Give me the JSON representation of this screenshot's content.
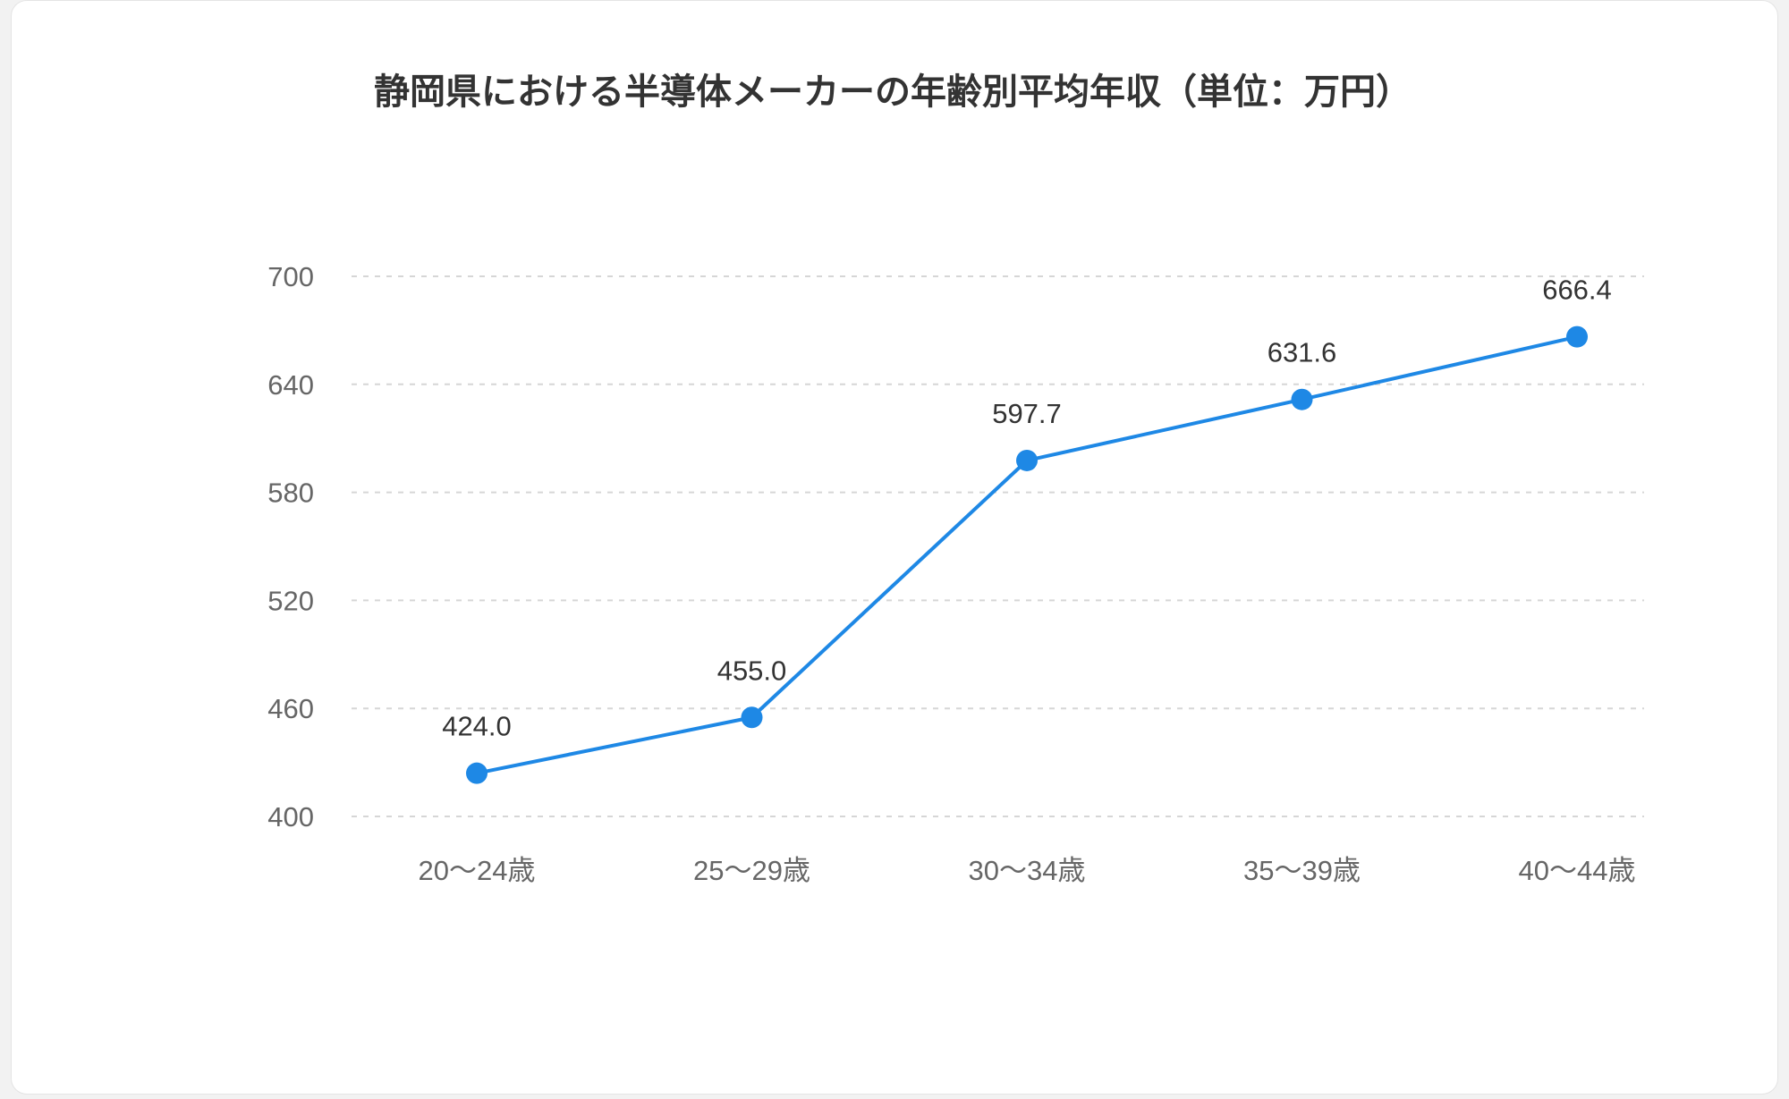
{
  "chart_data": {
    "type": "line",
    "title": "静岡県における半導体メーカーの年齢別平均年収（単位：万円）",
    "xlabel": "",
    "ylabel": "",
    "categories": [
      "20〜24歳",
      "25〜29歳",
      "30〜34歳",
      "35〜39歳",
      "40〜44歳"
    ],
    "series": [
      {
        "values": [
          424.0,
          455.0,
          597.7,
          631.6,
          666.4
        ]
      }
    ],
    "data_labels": [
      "424.0",
      "455.0",
      "597.7",
      "631.6",
      "666.4"
    ],
    "ylim": [
      400,
      700
    ],
    "yticks": [
      400,
      460,
      520,
      580,
      640,
      700
    ],
    "grid": true,
    "grid_style": "dashed",
    "legend": "none",
    "line_color": "#1e88e5"
  }
}
